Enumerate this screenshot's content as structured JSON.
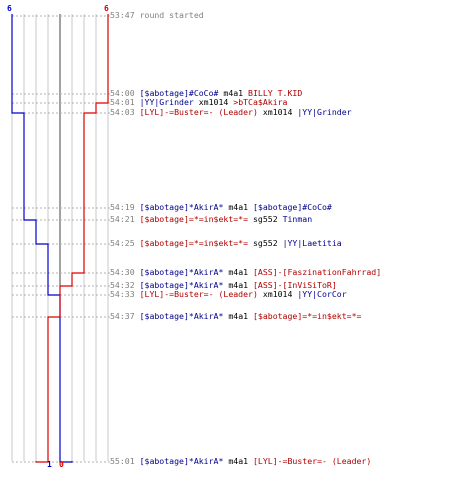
{
  "colors": {
    "blue_team": "#0000cc",
    "red_team": "#dd0000",
    "grid": "#c8c8c8",
    "axis": "#444444",
    "guide": "#b0b0b0"
  },
  "scores": {
    "top_blue": "6",
    "top_red": "6",
    "bottom_blue": "1",
    "bottom_red": "0"
  },
  "events": [
    {
      "time": "53:47",
      "parts": [
        {
          "text": "round started",
          "color": "gray"
        }
      ]
    },
    {
      "time": "54:00",
      "parts": [
        {
          "text": "[$abotage]#CoCo#",
          "color": "blue"
        },
        {
          "text": " m4a1 ",
          "color": "black"
        },
        {
          "text": "BILLY T.KID",
          "color": "red"
        }
      ]
    },
    {
      "time": "54:01",
      "parts": [
        {
          "text": "|YY|Grinder",
          "color": "blue"
        },
        {
          "text": " xm1014 ",
          "color": "black"
        },
        {
          "text": ">bTCa$Akira",
          "color": "red"
        }
      ]
    },
    {
      "time": "54:03",
      "parts": [
        {
          "text": "[LYL]-=Buster=- (Leader)",
          "color": "red"
        },
        {
          "text": " xm1014 ",
          "color": "black"
        },
        {
          "text": "|YY|Grinder",
          "color": "blue"
        }
      ]
    },
    {
      "time": "54:19",
      "parts": [
        {
          "text": "[$abotage]*AkirA*",
          "color": "blue"
        },
        {
          "text": " m4a1 ",
          "color": "black"
        },
        {
          "text": "[$abotage]#CoCo#",
          "color": "blue"
        }
      ]
    },
    {
      "time": "54:21",
      "parts": [
        {
          "text": "[$abotage]=*=in$ekt=*=",
          "color": "red"
        },
        {
          "text": " sg552 ",
          "color": "black"
        },
        {
          "text": "Tinman",
          "color": "blue"
        }
      ]
    },
    {
      "time": "54:25",
      "parts": [
        {
          "text": "[$abotage]=*=in$ekt=*=",
          "color": "red"
        },
        {
          "text": " sg552 ",
          "color": "black"
        },
        {
          "text": "|YY|Laetitia",
          "color": "blue"
        }
      ]
    },
    {
      "time": "54:30",
      "parts": [
        {
          "text": "[$abotage]*AkirA*",
          "color": "blue"
        },
        {
          "text": " m4a1 ",
          "color": "black"
        },
        {
          "text": "[ASS]-[FaszinationFahrrad]",
          "color": "red"
        }
      ]
    },
    {
      "time": "54:32",
      "parts": [
        {
          "text": "[$abotage]*AkirA*",
          "color": "blue"
        },
        {
          "text": " m4a1 ",
          "color": "black"
        },
        {
          "text": "[ASS]-[InViSiToR]",
          "color": "red"
        }
      ]
    },
    {
      "time": "54:33",
      "parts": [
        {
          "text": "[LYL]-=Buster=- (Leader)",
          "color": "red"
        },
        {
          "text": " xm1014 ",
          "color": "black"
        },
        {
          "text": "|YY|CorCor",
          "color": "blue"
        }
      ]
    },
    {
      "time": "54:37",
      "parts": [
        {
          "text": "[$abotage]*AkirA*",
          "color": "blue"
        },
        {
          "text": " m4a1 ",
          "color": "black"
        },
        {
          "text": "[$abotage]=*=in$ekt=*=",
          "color": "red"
        }
      ]
    },
    {
      "time": "55:01",
      "parts": [
        {
          "text": "[$abotage]*AkirA*",
          "color": "blue"
        },
        {
          "text": " m4a1 ",
          "color": "black"
        },
        {
          "text": "[LYL]-=Buster=- (Leader)",
          "color": "red"
        }
      ]
    }
  ],
  "alive_blue": [
    6,
    6,
    6,
    5,
    5,
    4,
    3,
    3,
    3,
    2,
    2,
    1
  ],
  "alive_red": [
    6,
    6,
    5,
    4,
    4,
    4,
    4,
    3,
    2,
    2,
    1,
    0
  ]
}
